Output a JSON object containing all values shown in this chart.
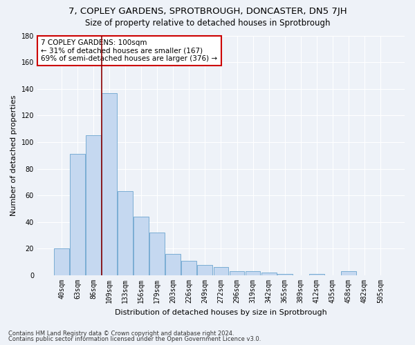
{
  "title1": "7, COPLEY GARDENS, SPROTBROUGH, DONCASTER, DN5 7JH",
  "title2": "Size of property relative to detached houses in Sprotbrough",
  "xlabel": "Distribution of detached houses by size in Sprotbrough",
  "ylabel": "Number of detached properties",
  "bar_values": [
    20,
    91,
    105,
    137,
    63,
    44,
    32,
    16,
    11,
    8,
    6,
    3,
    3,
    2,
    1,
    0,
    1,
    0,
    3,
    0,
    0
  ],
  "bar_labels": [
    "40sqm",
    "63sqm",
    "86sqm",
    "109sqm",
    "133sqm",
    "156sqm",
    "179sqm",
    "203sqm",
    "226sqm",
    "249sqm",
    "272sqm",
    "296sqm",
    "319sqm",
    "342sqm",
    "365sqm",
    "389sqm",
    "412sqm",
    "435sqm",
    "458sqm",
    "482sqm",
    "505sqm"
  ],
  "bar_color": "#c5d8f0",
  "bar_edge_color": "#7aadd4",
  "vline_x_index": 2.5,
  "vline_color": "#8b0000",
  "annotation_title": "7 COPLEY GARDENS: 100sqm",
  "annotation_line1": "← 31% of detached houses are smaller (167)",
  "annotation_line2": "69% of semi-detached houses are larger (376) →",
  "annotation_box_color": "#ffffff",
  "annotation_box_edge_color": "#cc0000",
  "ylim": [
    0,
    180
  ],
  "yticks": [
    0,
    20,
    40,
    60,
    80,
    100,
    120,
    140,
    160,
    180
  ],
  "footer1": "Contains HM Land Registry data © Crown copyright and database right 2024.",
  "footer2": "Contains public sector information licensed under the Open Government Licence v3.0.",
  "background_color": "#eef2f8",
  "grid_color": "#ffffff",
  "title1_fontsize": 9.5,
  "title2_fontsize": 8.5,
  "title1_fontweight": "normal",
  "axis_label_fontsize": 8,
  "tick_fontsize": 7,
  "annotation_fontsize": 7.5,
  "footer_fontsize": 6
}
